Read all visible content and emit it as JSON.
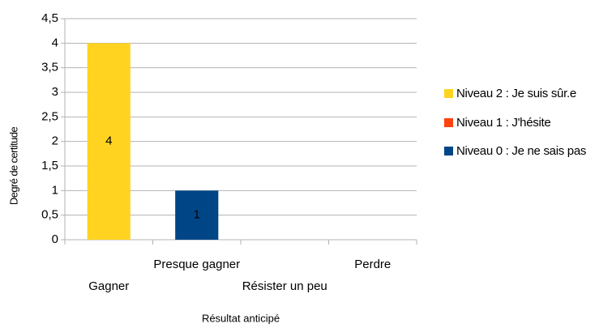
{
  "chart_data": {
    "type": "stacked_bar",
    "y_label": "Degré de certitude",
    "x_label": "Résultat anticipé",
    "categories": [
      "Gagner",
      "Presque gagner",
      "Résister un peu",
      "Perdre"
    ],
    "series": [
      {
        "name": "Niveau 2 : Je suis sûr.e",
        "color": "#ffd320",
        "values": [
          4,
          0,
          0,
          0
        ]
      },
      {
        "name": "Niveau 1 : J'hésite",
        "color": "#ff420e",
        "values": [
          0,
          0,
          0,
          0
        ]
      },
      {
        "name": "Niveau 0 : Je ne sais pas",
        "color": "#004586",
        "values": [
          0,
          1,
          0,
          0
        ]
      }
    ],
    "ylim": [
      0,
      4.5
    ],
    "yticks": [
      0,
      {
        "value": 0.5,
        "label": "0,5"
      },
      1,
      {
        "value": 1.5,
        "label": "1,5"
      },
      2,
      {
        "value": 2.5,
        "label": "2,5"
      },
      3,
      {
        "value": 3.5,
        "label": "3,5"
      },
      4,
      {
        "value": 4.5,
        "label": "4,5"
      }
    ],
    "grid": true,
    "legend": "right"
  }
}
